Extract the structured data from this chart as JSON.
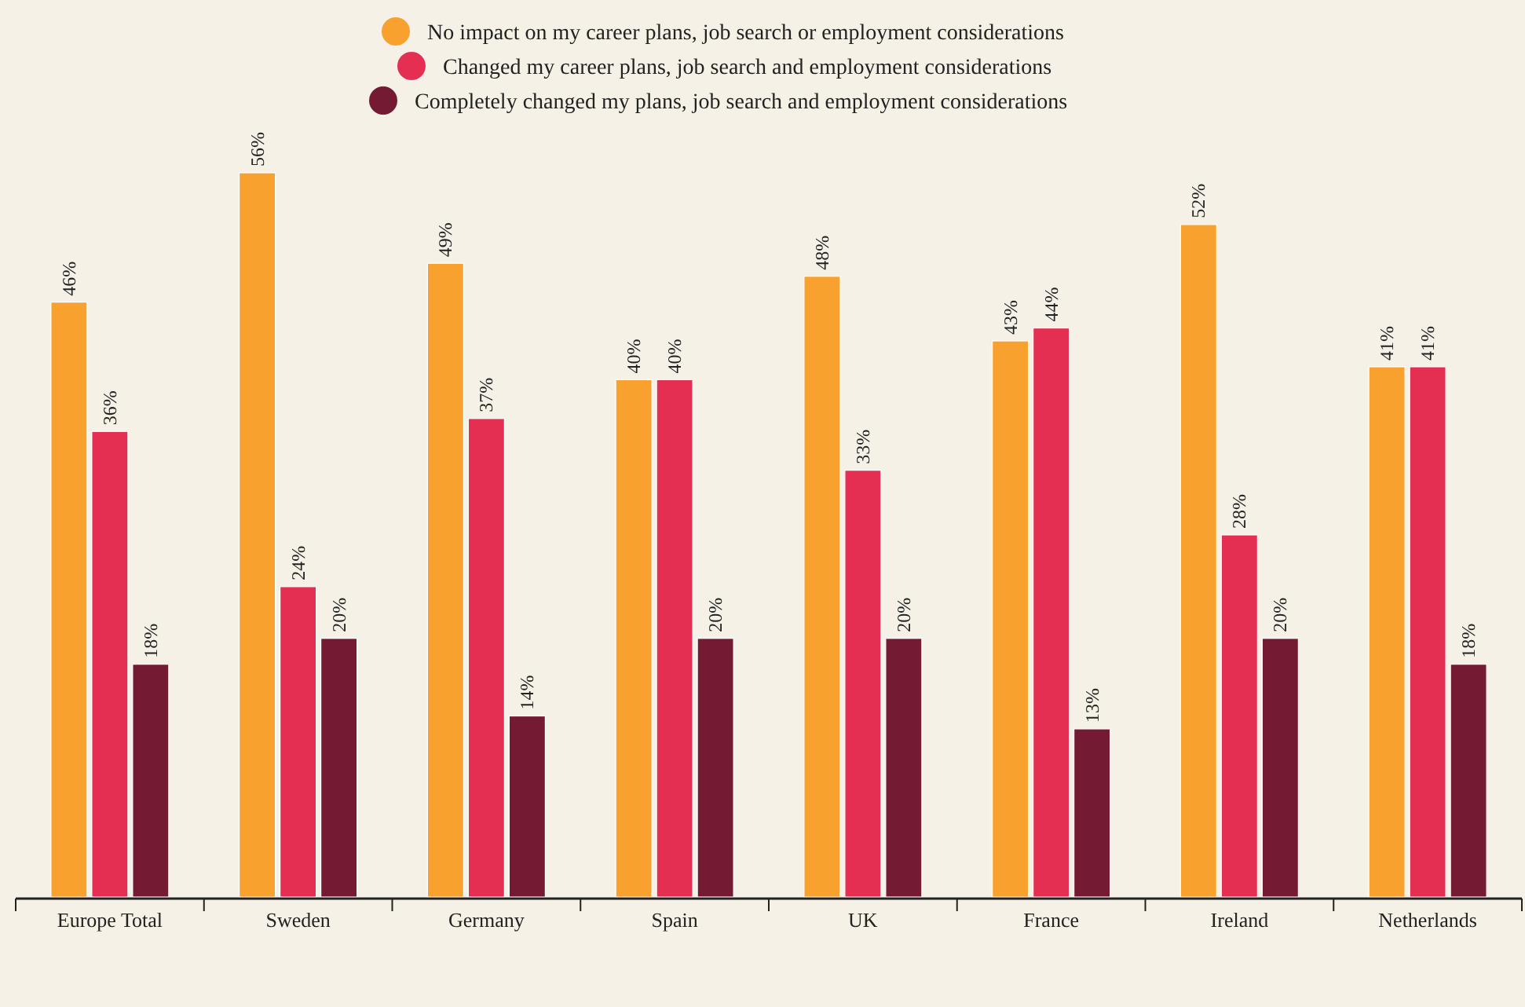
{
  "chart_data": {
    "type": "bar",
    "categories": [
      "Europe Total",
      "Sweden",
      "Germany",
      "Spain",
      "UK",
      "France",
      "Ireland",
      "Netherlands"
    ],
    "series": [
      {
        "name": "No impact on my career plans, job search or employment considerations",
        "color": "#f9a12e",
        "values": [
          46,
          56,
          49,
          40,
          48,
          43,
          52,
          41
        ],
        "value_labels": [
          "46%",
          "56%",
          "49%",
          "40%",
          "48%",
          "43%",
          "52%",
          "41%"
        ]
      },
      {
        "name": "Changed my career plans, job search and employment considerations",
        "color": "#e42f52",
        "values": [
          36,
          24,
          37,
          40,
          33,
          44,
          28,
          41
        ],
        "value_labels": [
          "36%",
          "24%",
          "37%",
          "40%",
          "33%",
          "44%",
          "28%",
          "41%"
        ]
      },
      {
        "name": "Completely changed my plans, job search and employment considerations",
        "color": "#751a33",
        "values": [
          18,
          20,
          14,
          20,
          20,
          13,
          20,
          18
        ],
        "value_labels": [
          "18%",
          "20%",
          "14%",
          "20%",
          "20%",
          "13%",
          "20%",
          "18%"
        ]
      }
    ],
    "legend": "top",
    "grid": false
  }
}
